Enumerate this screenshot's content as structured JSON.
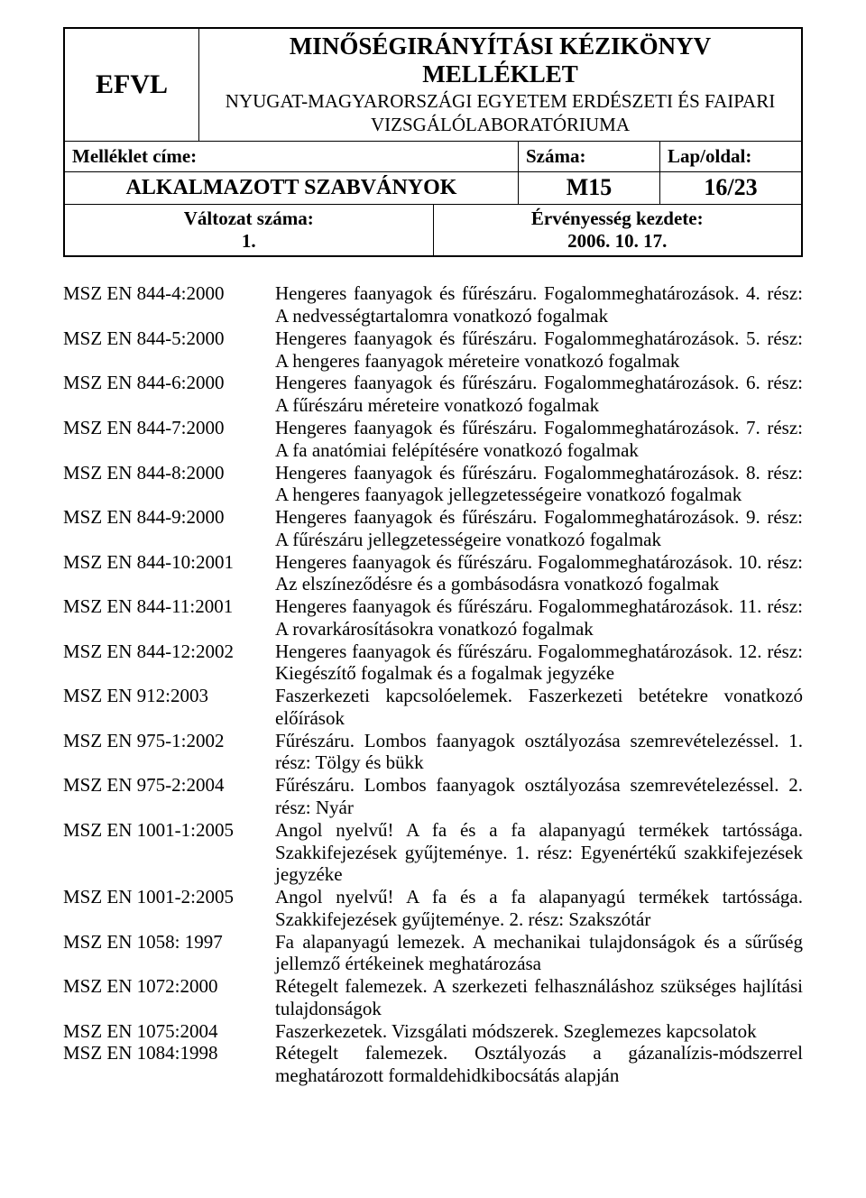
{
  "header": {
    "brand": "EFVL",
    "title_line1": "MINŐSÉGIRÁNYÍTÁSI KÉZIKÖNYV",
    "title_line2": "MELLÉKLET",
    "subtitle_line1": "NYUGAT-MAGYARORSZÁGI EGYETEM ERDÉSZETI ÉS FAIPARI",
    "subtitle_line2": "VIZSGÁLÓLABORATÓRIUMA",
    "label_left": "Melléklet címe:",
    "label_mid": "Száma:",
    "label_right": "Lap/oldal:",
    "doc_name_smallcaps": "ALKALMAZOTT SZABVÁNYOK",
    "doc_number": "M15",
    "page_info": "16/23",
    "version_label": "Változat száma:",
    "version_value": "1.",
    "validity_label": "Érvényesség kezdete:",
    "validity_value": "2006. 10. 17."
  },
  "items": [
    {
      "code": "MSZ EN 844-4:2000",
      "desc": "Hengeres faanyagok és fűrészáru. Fogalommeghatározások. 4. rész: A nedvességtartalomra vonatkozó fogalmak"
    },
    {
      "code": "MSZ EN 844-5:2000",
      "desc": "Hengeres faanyagok és fűrészáru. Fogalommeghatározások. 5. rész: A hengeres faanyagok méreteire vonatkozó fogalmak"
    },
    {
      "code": "MSZ EN 844-6:2000",
      "desc": "Hengeres faanyagok és fűrészáru. Fogalommeghatározások. 6. rész: A fűrészáru méreteire vonatkozó fogalmak"
    },
    {
      "code": "MSZ EN 844-7:2000",
      "desc": "Hengeres faanyagok és fűrészáru. Fogalommeghatározások. 7. rész: A fa anatómiai felépítésére vonatkozó fogalmak"
    },
    {
      "code": "MSZ EN 844-8:2000",
      "desc": "Hengeres faanyagok és fűrészáru. Fogalommeghatározások. 8. rész: A hengeres faanyagok jellegzetességeire vonatkozó fogalmak"
    },
    {
      "code": "MSZ EN 844-9:2000",
      "desc": "Hengeres faanyagok és fűrészáru. Fogalommeghatározások. 9. rész: A fűrészáru jellegzetességeire vonatkozó fogalmak"
    },
    {
      "code": "MSZ EN 844-10:2001",
      "desc": "Hengeres faanyagok és fűrészáru. Fogalommeghatározások. 10. rész: Az elszíneződésre és a gombásodásra vonatkozó fogalmak"
    },
    {
      "code": "MSZ EN 844-11:2001",
      "desc": "Hengeres faanyagok és fűrészáru. Fogalommeghatározások. 11. rész: A rovarkárosításokra vonatkozó fogalmak"
    },
    {
      "code": "MSZ EN 844-12:2002",
      "desc": "Hengeres faanyagok és fűrészáru. Fogalommeghatározások. 12. rész: Kiegészítő fogalmak és a fogalmak jegyzéke"
    },
    {
      "code": "MSZ EN 912:2003",
      "desc": "Faszerkezeti kapcsolóelemek. Faszerkezeti betétekre vonatkozó előírások"
    },
    {
      "code": "MSZ EN 975-1:2002",
      "desc": "Fűrészáru. Lombos faanyagok osztályozása szemrevételezéssel. 1. rész: Tölgy és bükk"
    },
    {
      "code": "MSZ EN 975-2:2004",
      "desc": "Fűrészáru. Lombos faanyagok osztályozása szemrevételezéssel. 2. rész: Nyár"
    },
    {
      "code": "MSZ EN 1001-1:2005",
      "desc": "Angol nyelvű! A fa és a fa alapanyagú termékek tartóssága. Szakkifejezések gyűjteménye. 1. rész: Egyenértékű szakkifejezések jegyzéke"
    },
    {
      "code": "MSZ EN 1001-2:2005",
      "desc": "Angol nyelvű! A fa és a fa alapanyagú termékek tartóssága. Szakkifejezések gyűjteménye. 2. rész: Szakszótár"
    },
    {
      "code": "MSZ EN 1058: 1997",
      "desc": "Fa alapanyagú lemezek. A mechanikai tulajdonságok és a sűrűség jellemző értékeinek meghatározása"
    },
    {
      "code": "MSZ EN 1072:2000",
      "desc": "Rétegelt falemezek. A szerkezeti felhasználáshoz szükséges hajlítási tulajdonságok"
    },
    {
      "code": "MSZ EN 1075:2004",
      "desc": "Faszerkezetek. Vizsgálati módszerek. Szeglemezes kapcsolatok"
    },
    {
      "code": "MSZ EN 1084:1998",
      "desc": "Rétegelt falemezek. Osztályozás a gázanalízis-módszerrel meghatározott formaldehidkibocsátás alapján"
    }
  ]
}
